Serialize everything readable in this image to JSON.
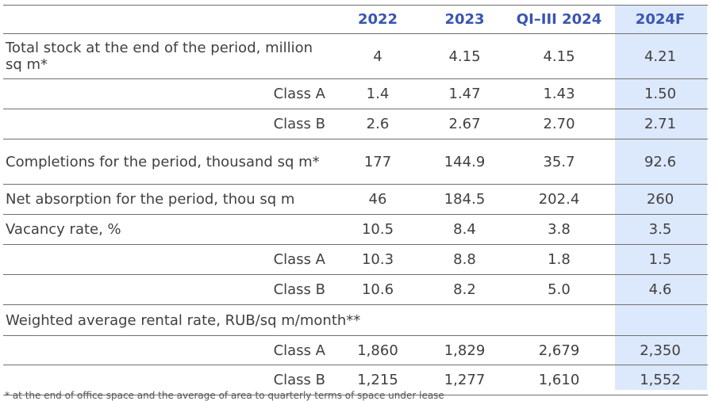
{
  "columns": [
    "2022",
    "2023",
    "QI–III 2024",
    "2024F"
  ],
  "rows": [
    {
      "label": "Total stock at the end of the period, million sq m*",
      "values": [
        "4",
        "4.15",
        "4.15",
        "4.21"
      ]
    },
    {
      "label": "Class A",
      "values": [
        "1.4",
        "1.47",
        "1.43",
        "1.50"
      ]
    },
    {
      "label": "Class B",
      "values": [
        "2.6",
        "2.67",
        "2.70",
        "2.71"
      ]
    },
    {
      "label": "Completions for the period, thousand sq m*",
      "values": [
        "177",
        "144.9",
        "35.7",
        "92.6"
      ]
    },
    {
      "label": "Net absorption for the period, thou sq m",
      "values": [
        "46",
        "184.5",
        "202.4",
        "260"
      ]
    },
    {
      "label": "Vacancy rate, %",
      "values": [
        "10.5",
        "8.4",
        "3.8",
        "3.5"
      ]
    },
    {
      "label": "Class A",
      "values": [
        "10.3",
        "8.8",
        "1.8",
        "1.5"
      ]
    },
    {
      "label": "Class B",
      "values": [
        "10.6",
        "8.2",
        "5.0",
        "4.6"
      ]
    },
    {
      "label": "Weighted average rental rate, RUB/sq m/month**",
      "values": [
        "",
        "",
        "",
        ""
      ]
    },
    {
      "label": "Class A",
      "values": [
        "1,860",
        "1,829",
        "2,679",
        "2,350"
      ]
    },
    {
      "label": "Class B",
      "values": [
        "1,215",
        "1,277",
        "1,610",
        "1,552"
      ]
    }
  ],
  "footnote": "* at the end of office space and the average of area to quarterly terms of space under lease"
}
